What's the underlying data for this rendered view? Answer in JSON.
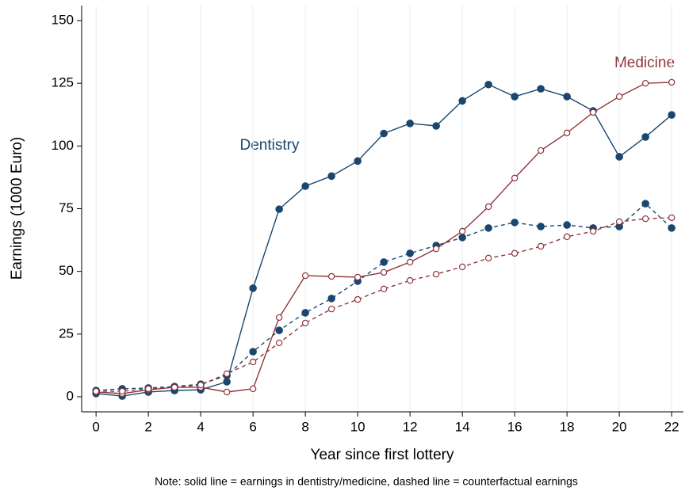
{
  "chart_data": {
    "type": "line",
    "xlabel": "Year since first lottery",
    "ylabel": "Earnings (1000 Euro)",
    "note": "Note: solid line = earnings in dentistry/medicine, dashed line = counterfactual earnings",
    "x": [
      0,
      1,
      2,
      3,
      4,
      5,
      6,
      7,
      8,
      9,
      10,
      11,
      12,
      13,
      14,
      15,
      16,
      17,
      18,
      19,
      20,
      21,
      22
    ],
    "xlim": [
      -0.55,
      22.45
    ],
    "xticks": [
      0,
      2,
      4,
      6,
      8,
      10,
      12,
      14,
      16,
      18,
      20,
      22
    ],
    "ylim": [
      -6,
      156
    ],
    "yticks": [
      0,
      25,
      50,
      75,
      100,
      125,
      150
    ],
    "grid": true,
    "annotations": [
      {
        "text": "Dentistry",
        "color": "#1a476f"
      },
      {
        "text": "Medicine",
        "color": "#90353b"
      }
    ],
    "series": [
      {
        "color": "#1a476f",
        "style": "solid",
        "marker": "filled",
        "values": [
          1.3,
          0.3,
          1.9,
          2.5,
          2.8,
          6,
          43.3,
          74.8,
          84,
          88,
          94,
          105,
          109,
          108,
          118,
          124.5,
          119.7,
          122.8,
          119.7,
          114,
          95.7,
          103.6,
          112.4
        ]
      },
      {
        "color": "#1a476f",
        "style": "dashed",
        "marker": "filled",
        "values": [
          2.5,
          3.2,
          3.5,
          4.1,
          5,
          8.5,
          18,
          26.5,
          33.5,
          39.2,
          46.1,
          53.7,
          57.2,
          60.3,
          63.5,
          67.3,
          69.5,
          67.9,
          68.5,
          67.3,
          67.9,
          77,
          67.3
        ]
      },
      {
        "color": "#90353b",
        "style": "solid",
        "marker": "hollow",
        "values": [
          1.9,
          1.3,
          2.8,
          3.8,
          3.8,
          1.9,
          3.2,
          31.6,
          48.3,
          48,
          47.7,
          49.6,
          53.7,
          59,
          66,
          75.8,
          87.2,
          98.2,
          105.2,
          113.4,
          119.7,
          125,
          125.4
        ]
      },
      {
        "color": "#90353b",
        "style": "dashed",
        "marker": "hollow",
        "values": [
          2.2,
          2.2,
          3.2,
          3.8,
          4.7,
          9.2,
          13.9,
          21.5,
          29.4,
          35,
          38.8,
          43,
          46.4,
          48.9,
          51.8,
          55.3,
          57.2,
          60,
          63.8,
          66,
          69.8,
          71,
          71.4
        ]
      }
    ]
  }
}
